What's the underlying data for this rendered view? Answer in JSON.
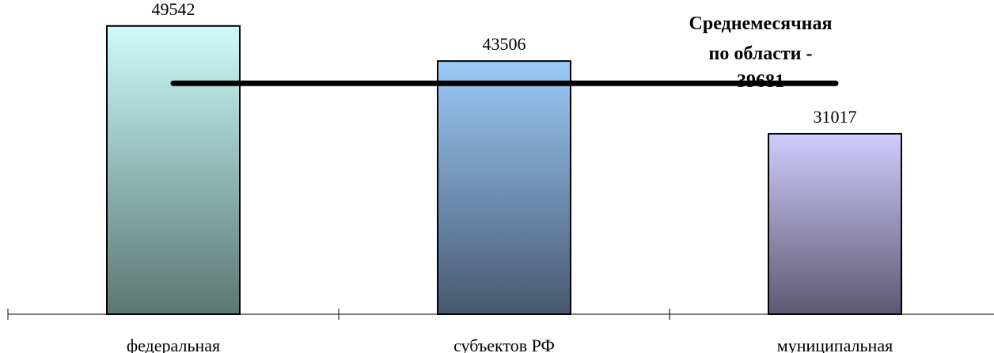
{
  "chart_data": {
    "type": "bar",
    "categories": [
      "федеральная",
      "субъектов РФ",
      "муниципальная"
    ],
    "values": [
      49542,
      43506,
      31017
    ],
    "data_labels": [
      "49542",
      "43506",
      "31017"
    ],
    "ylim": [
      0,
      54000
    ],
    "grid": false,
    "legend": "none",
    "bar_gradients": [
      {
        "top": "#ccfcfa",
        "bottom": "#5a7670"
      },
      {
        "top": "#9ccbf9",
        "bottom": "#46586f"
      },
      {
        "top": "#d0ccfb",
        "bottom": "#5d5872"
      }
    ],
    "bar_stroke": "#000000",
    "average": {
      "value": 39681,
      "label_lines": [
        "Среднемесячная",
        "по области -",
        "39681"
      ],
      "color": "#000000"
    }
  }
}
